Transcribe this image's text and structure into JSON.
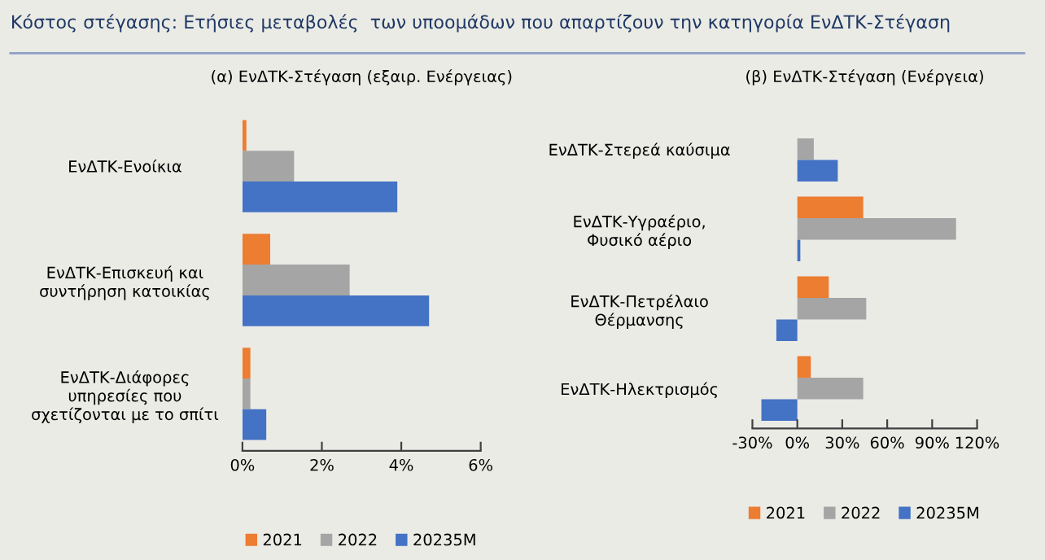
{
  "chart_data": [
    {
      "type": "bar",
      "orientation": "horizontal",
      "title": "(α) ΕνΔΤΚ-Στέγαση (εξαιρ. Ενέργειας)",
      "annotations": [
        "Κόστος στέγασης: Ετήσιες μεταβολές  των υποομάδων που απαρτίζουν την κατηγορία ΕνΔΤΚ-Στέγαση"
      ],
      "categories": [
        "ΕνΔΤΚ-Ενοίκια",
        "ΕνΔΤΚ-Επισκευή και\nσυντήρηση κατοικίας",
        "ΕνΔΤΚ-Διάφορες\nυπηρεσίες που\nσχετίζονται με το σπίτι"
      ],
      "series": [
        {
          "name": "2021",
          "color": "#ed7d31",
          "values": [
            0.1,
            0.7,
            0.2
          ]
        },
        {
          "name": "2022",
          "color": "#a5a5a5",
          "values": [
            1.3,
            2.7,
            0.2
          ]
        },
        {
          "name": "20235M",
          "color": "#4472c4",
          "values": [
            3.9,
            4.7,
            0.6
          ]
        }
      ],
      "xlim": [
        0,
        6
      ],
      "xticks": [
        {
          "value": 0,
          "label": "0%"
        },
        {
          "value": 2,
          "label": "2%"
        },
        {
          "value": 4,
          "label": "4%"
        },
        {
          "value": 6,
          "label": "6%"
        }
      ],
      "grid": false,
      "legend": "bottom"
    },
    {
      "type": "bar",
      "orientation": "horizontal",
      "title": "(β) ΕνΔΤΚ-Στέγαση (Ενέργεια)",
      "categories": [
        "ΕνΔΤΚ-Στερεά καύσιμα",
        "ΕνΔΤΚ-Υγραέριο,\nΦυσικό αέριο",
        "ΕνΔΤΚ-Πετρέλαιο\nΘέρμανσης",
        "ΕνΔΤΚ-Ηλεκτρισμός"
      ],
      "series": [
        {
          "name": "2021",
          "color": "#ed7d31",
          "values": [
            0,
            44,
            21,
            9
          ]
        },
        {
          "name": "2022",
          "color": "#a5a5a5",
          "values": [
            11,
            106,
            46,
            44
          ]
        },
        {
          "name": "20235M",
          "color": "#4472c4",
          "values": [
            27,
            2,
            -14,
            -24
          ]
        }
      ],
      "xlim": [
        -30,
        120
      ],
      "xticks": [
        {
          "value": -30,
          "label": "-30%"
        },
        {
          "value": 0,
          "label": "0%"
        },
        {
          "value": 30,
          "label": "30%"
        },
        {
          "value": 60,
          "label": "60%"
        },
        {
          "value": 90,
          "label": "90%"
        },
        {
          "value": 120,
          "label": "120%"
        }
      ],
      "grid": false,
      "legend": "bottom"
    }
  ]
}
